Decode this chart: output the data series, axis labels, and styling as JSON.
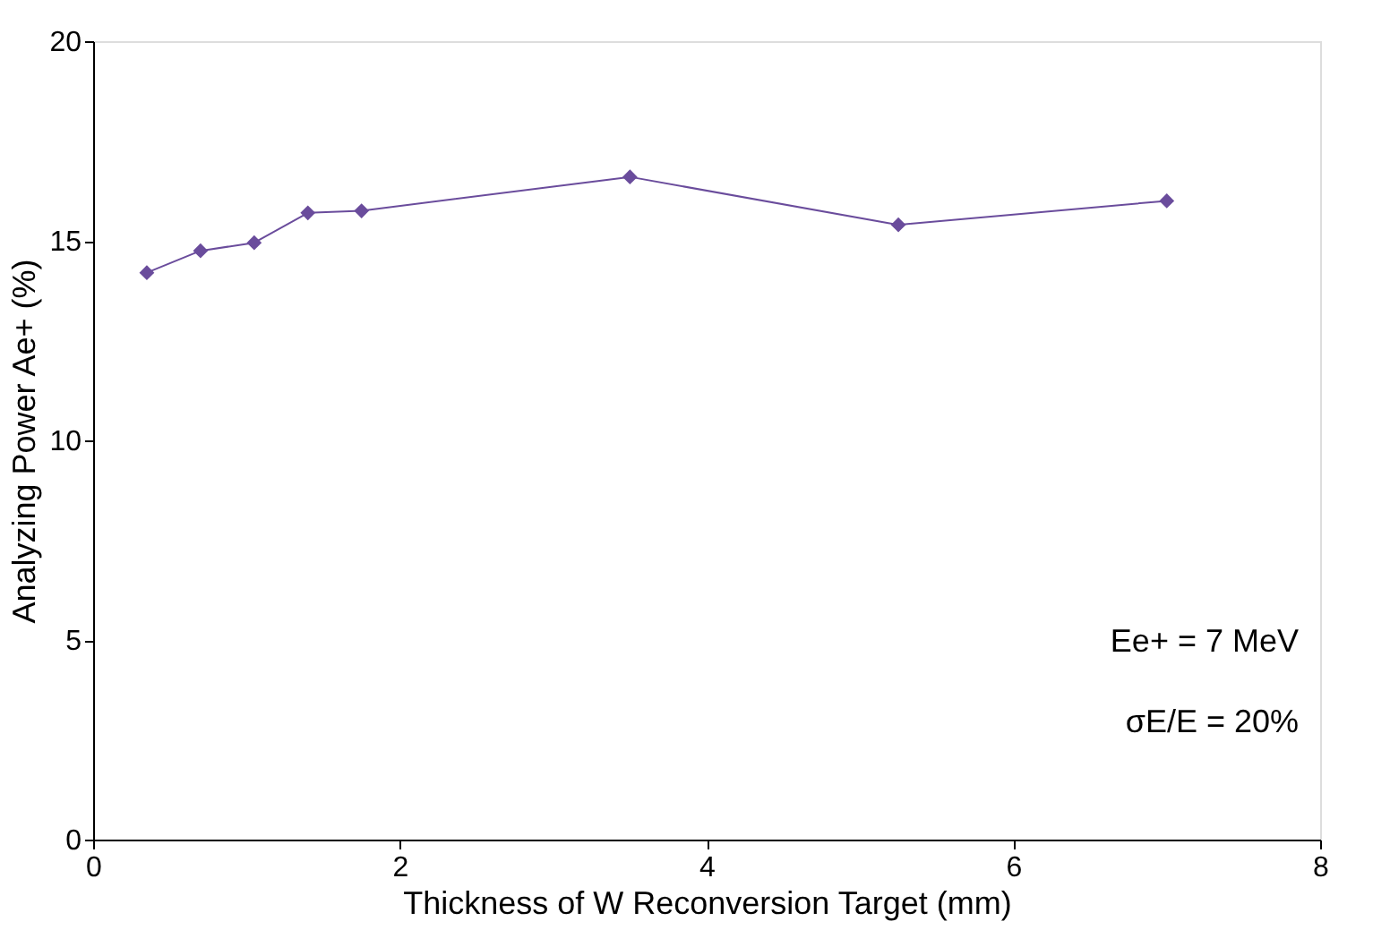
{
  "chart_data": {
    "type": "line",
    "xlabel": "Thickness of W Reconversion Target (mm)",
    "ylabel": "Analyzing Power Ae+ (%)",
    "x": [
      0.35,
      0.7,
      1.05,
      1.4,
      1.75,
      3.5,
      5.25,
      7.0
    ],
    "series": [
      {
        "color": "#6a4c9c",
        "values": [
          14.2,
          14.75,
          14.95,
          15.7,
          15.75,
          16.6,
          15.4,
          16.0
        ]
      }
    ],
    "xlim": [
      0,
      8
    ],
    "xticks": [
      0,
      2,
      4,
      6,
      8
    ],
    "ylim": [
      0,
      20
    ],
    "yticks": [
      0,
      5,
      10,
      15,
      20
    ],
    "marker": "diamond",
    "line_style": "solid",
    "grid": false,
    "annotations": [
      "Ee+ = 7 MeV",
      "σE/E = 20%"
    ]
  }
}
